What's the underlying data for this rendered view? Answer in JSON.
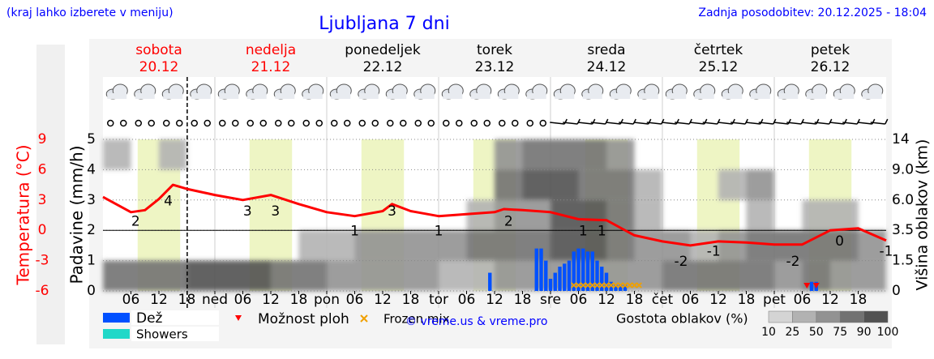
{
  "header": {
    "note": "(kraj lahko izberete v meniju)",
    "updated": "Zadnja posodobitev: 20.12.2025 - 18:04",
    "credit": "© vreme.us & vreme.pro"
  },
  "chart_data": {
    "type": "meteogram",
    "title": "Ljubljana 7 dni",
    "days": [
      {
        "name": "sobota",
        "date": "20.12",
        "color": "#ff0000"
      },
      {
        "name": "nedelja",
        "date": "21.12",
        "color": "#ff0000"
      },
      {
        "name": "ponedeljek",
        "date": "22.12",
        "color": "#000000"
      },
      {
        "name": "torek",
        "date": "23.12",
        "color": "#000000"
      },
      {
        "name": "sreda",
        "date": "24.12",
        "color": "#000000"
      },
      {
        "name": "četrtek",
        "date": "25.12",
        "color": "#000000"
      },
      {
        "name": "petek",
        "date": "26.12",
        "color": "#000000"
      }
    ],
    "xlim": [
      0,
      168
    ],
    "xticks": [
      {
        "value": 6,
        "label": "06"
      },
      {
        "value": 12,
        "label": "12"
      },
      {
        "value": 18,
        "label": "18"
      },
      {
        "value": 24,
        "label": "ned"
      },
      {
        "value": 30,
        "label": "06"
      },
      {
        "value": 36,
        "label": "12"
      },
      {
        "value": 42,
        "label": "18"
      },
      {
        "value": 48,
        "label": "pon"
      },
      {
        "value": 54,
        "label": "06"
      },
      {
        "value": 60,
        "label": "12"
      },
      {
        "value": 66,
        "label": "18"
      },
      {
        "value": 72,
        "label": "tor"
      },
      {
        "value": 78,
        "label": "06"
      },
      {
        "value": 84,
        "label": "12"
      },
      {
        "value": 90,
        "label": "18"
      },
      {
        "value": 96,
        "label": "sre"
      },
      {
        "value": 102,
        "label": "06"
      },
      {
        "value": 108,
        "label": "12"
      },
      {
        "value": 114,
        "label": "18"
      },
      {
        "value": 120,
        "label": "čet"
      },
      {
        "value": 126,
        "label": "06"
      },
      {
        "value": 132,
        "label": "12"
      },
      {
        "value": 138,
        "label": "18"
      },
      {
        "value": 144,
        "label": "pet"
      },
      {
        "value": 150,
        "label": "06"
      },
      {
        "value": 156,
        "label": "12"
      },
      {
        "value": 162,
        "label": "18"
      }
    ],
    "now_line_x": 18.07,
    "ylabel": "Padavine (mm/h)",
    "ylim": [
      0,
      5
    ],
    "yticks": [
      0,
      1,
      2,
      3,
      4,
      5
    ],
    "series": [
      {
        "name": "Dež",
        "color": "#0050ff",
        "x": [
          83,
          93,
          94,
          95,
          96,
          97,
          98,
          99,
          100,
          101,
          102,
          103,
          104,
          105,
          106,
          107,
          108,
          109,
          110,
          111,
          112,
          152,
          153
        ],
        "values": [
          0.6,
          1.4,
          1.4,
          1.0,
          0.4,
          0.6,
          0.8,
          0.9,
          1.0,
          1.3,
          1.4,
          1.4,
          1.3,
          1.3,
          1.0,
          0.8,
          0.6,
          0.3,
          0.2,
          0.2,
          0.2,
          0.3,
          0.3
        ]
      },
      {
        "name": "Showers",
        "color": "#20d8c8",
        "x": [],
        "values": []
      }
    ],
    "markers": [
      {
        "name": "Možnost ploh",
        "color": "#ff0000",
        "x": [
          151,
          153
        ]
      },
      {
        "name": "Frozen mix",
        "color": "#f0a000",
        "x": [
          101,
          102,
          103,
          104,
          105,
          106,
          107,
          108,
          109,
          110,
          111,
          112,
          113,
          114,
          115
        ]
      }
    ],
    "temperature": {
      "label": "Temperatura (°C)",
      "color": "#ff0000",
      "ylim": [
        -6,
        9
      ],
      "yticks": [
        9,
        6,
        3,
        0,
        -3,
        -6
      ],
      "x": [
        0,
        6,
        9,
        12,
        15,
        18,
        24,
        30,
        36,
        42,
        48,
        54,
        60,
        62,
        66,
        72,
        78,
        84,
        86,
        90,
        96,
        102,
        108,
        114,
        120,
        126,
        132,
        138,
        144,
        150,
        156,
        162,
        168
      ],
      "values": [
        3.3,
        1.8,
        2.0,
        3.1,
        4.5,
        4.1,
        3.5,
        3.0,
        3.5,
        2.6,
        1.8,
        1.4,
        1.9,
        2.6,
        1.9,
        1.4,
        1.6,
        1.8,
        2.1,
        2.0,
        1.8,
        1.1,
        1.0,
        -0.5,
        -1.1,
        -1.5,
        -1.1,
        -1.2,
        -1.4,
        -1.4,
        0.0,
        0.2,
        -1.0
      ],
      "extremes": {
        "x": [
          7,
          14,
          31,
          37,
          54,
          62,
          72,
          87,
          103,
          107,
          124,
          131,
          148,
          158,
          168
        ],
        "values": [
          2,
          4,
          3,
          3,
          1,
          3,
          1,
          2,
          1,
          1,
          -2,
          -1,
          -2,
          0,
          -1
        ]
      }
    },
    "cloud": {
      "label": "Višina oblakov (km)",
      "ylim": [
        0,
        14
      ],
      "yticks": [
        0,
        1.5,
        3.5,
        {
          "value": 6,
          "label": "6.0"
        },
        {
          "value": 9,
          "label": "9.0"
        },
        14
      ],
      "legend_title": "Gostota oblakov (%)",
      "scale_ticks": [
        10,
        25,
        50,
        75,
        90,
        100
      ],
      "scale_colors": [
        "#d4d4d4",
        "#b2b2b2",
        "#929292",
        "#727272",
        "#525252"
      ],
      "x_edges": [
        0,
        6,
        12,
        18,
        24,
        30,
        36,
        42,
        48,
        54,
        60,
        66,
        72,
        78,
        84,
        90,
        96,
        102,
        108,
        114,
        120,
        126,
        132,
        138,
        144,
        150,
        156,
        162,
        168
      ],
      "height_edges": [
        0,
        1.5,
        3.5,
        6,
        9,
        14
      ],
      "density": [
        [
          75,
          75,
          75,
          90,
          90,
          90,
          75,
          75,
          50,
          50,
          50,
          50,
          25,
          25,
          50,
          50,
          50,
          50,
          50,
          50,
          75,
          75,
          75,
          75,
          50,
          75,
          50,
          50
        ],
        [
          0,
          0,
          0,
          0,
          0,
          0,
          0,
          25,
          25,
          50,
          50,
          50,
          50,
          75,
          75,
          75,
          90,
          90,
          75,
          50,
          50,
          25,
          50,
          75,
          75,
          75,
          75,
          50
        ],
        [
          0,
          0,
          0,
          0,
          0,
          0,
          0,
          0,
          0,
          0,
          0,
          0,
          0,
          25,
          50,
          50,
          90,
          90,
          75,
          25,
          0,
          0,
          0,
          25,
          0,
          25,
          25,
          0
        ],
        [
          0,
          0,
          0,
          0,
          0,
          0,
          0,
          0,
          0,
          0,
          0,
          0,
          0,
          0,
          75,
          90,
          90,
          75,
          75,
          25,
          0,
          0,
          25,
          50,
          0,
          0,
          0,
          0
        ],
        [
          25,
          0,
          25,
          0,
          0,
          0,
          0,
          0,
          0,
          0,
          0,
          0,
          0,
          0,
          50,
          75,
          75,
          75,
          50,
          0,
          0,
          0,
          0,
          0,
          0,
          0,
          0,
          0
        ]
      ]
    }
  }
}
